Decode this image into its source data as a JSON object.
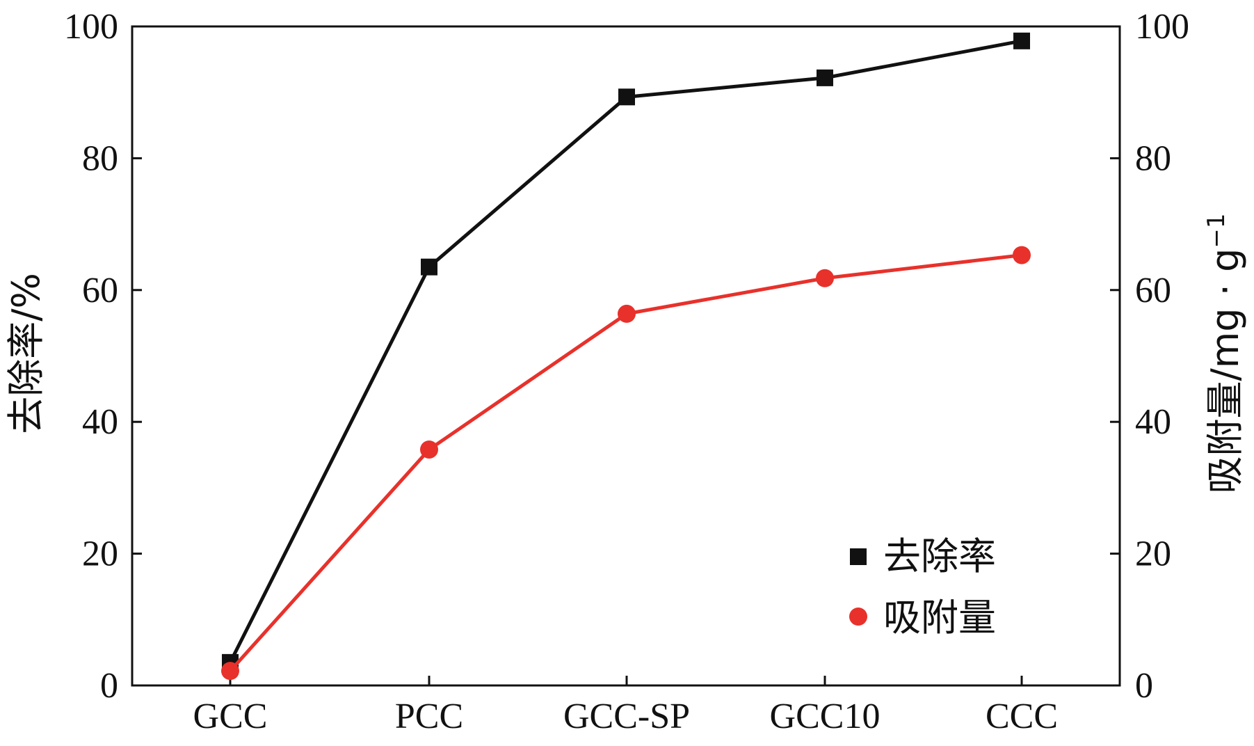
{
  "chart_data": {
    "type": "line",
    "categories": [
      "GCC",
      "PCC",
      "GCC-SP",
      "GCC10",
      "CCC"
    ],
    "series": [
      {
        "name": "去除率",
        "axis": "left",
        "marker": "square",
        "color": "#111111",
        "values": [
          3.5,
          63.5,
          89.3,
          92.2,
          97.8
        ]
      },
      {
        "name": "吸附量",
        "axis": "right",
        "marker": "circle",
        "color": "#e8312b",
        "values": [
          2.2,
          35.8,
          56.4,
          61.8,
          65.3
        ]
      }
    ],
    "ylabel": "去除率/%",
    "ylabel_right_main": "吸附量/mg · g",
    "ylabel_right_sup": "−1",
    "ylim": [
      0,
      100
    ],
    "ylim_right": [
      0,
      100
    ],
    "yticks": [
      "0",
      "20",
      "40",
      "60",
      "80",
      "100"
    ],
    "yticks_right": [
      "0",
      "20",
      "40",
      "60",
      "80",
      "100"
    ],
    "legend_position": "lower-right"
  }
}
